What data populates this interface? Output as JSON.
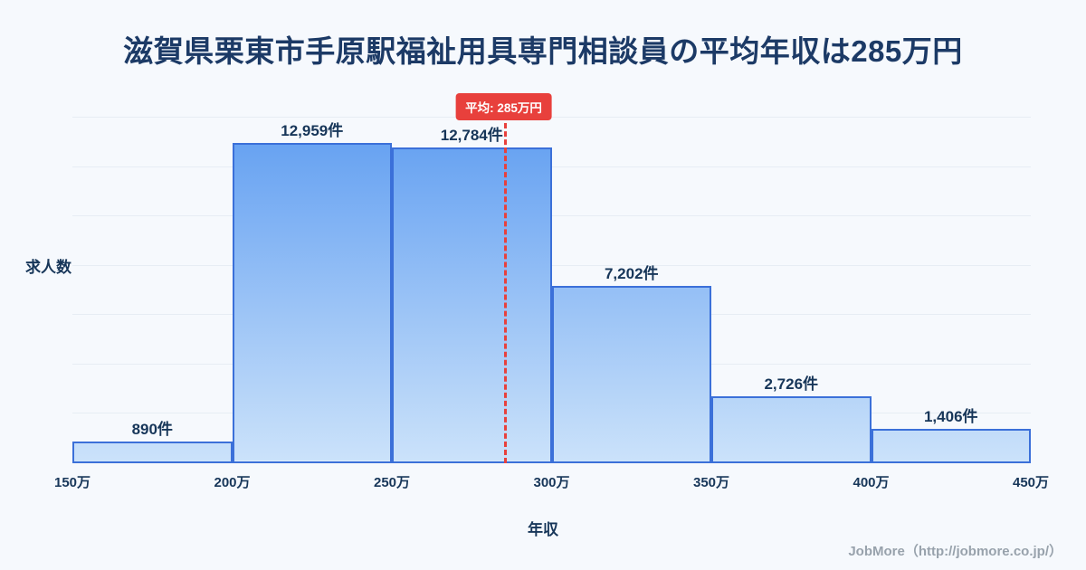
{
  "footer": {
    "credit": "JobMore（http://jobmore.co.jp/）"
  },
  "chart_data": {
    "type": "bar",
    "title": "滋賀県栗東市手原駅福祉用具専門相談員の平均年収は285万円",
    "xlabel": "年収",
    "ylabel": "求人数",
    "x_ticks": [
      "150万",
      "200万",
      "250万",
      "300万",
      "350万",
      "400万",
      "450万"
    ],
    "x_range": [
      150,
      450
    ],
    "ylim": [
      0,
      14000
    ],
    "grid": true,
    "legend": "none",
    "bins": [
      {
        "range_start": 150,
        "range_end": 200,
        "value": 890,
        "label": "890件"
      },
      {
        "range_start": 200,
        "range_end": 250,
        "value": 12959,
        "label": "12,959件"
      },
      {
        "range_start": 250,
        "range_end": 300,
        "value": 12784,
        "label": "12,784件"
      },
      {
        "range_start": 300,
        "range_end": 350,
        "value": 7202,
        "label": "7,202件"
      },
      {
        "range_start": 350,
        "range_end": 400,
        "value": 2726,
        "label": "2,726件"
      },
      {
        "range_start": 400,
        "range_end": 450,
        "value": 1406,
        "label": "1,406件"
      }
    ],
    "average": {
      "value": 285,
      "label": "平均: 285万円"
    },
    "colors": {
      "background": "#f6f9fd",
      "title": "#1c3a66",
      "text": "#173659",
      "bar_border": "#3b70d9",
      "bar_gradient_top": "#5f9df1",
      "bar_gradient_bottom": "#cbe2fa",
      "average_line": "#e8403c",
      "gridline": "#e7edf4",
      "footer": "#98a2ac"
    }
  }
}
